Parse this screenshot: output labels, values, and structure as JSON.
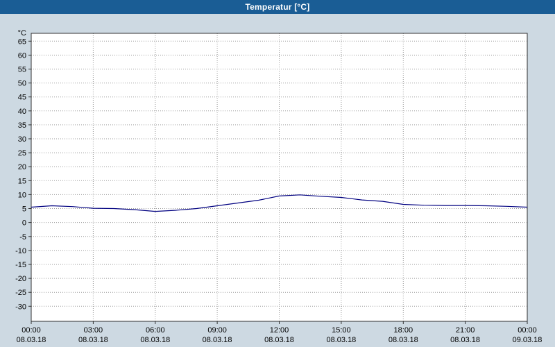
{
  "window": {
    "title": "Temperatur [°C]"
  },
  "chart_data": {
    "type": "line",
    "title": "Temperatur [°C]",
    "unit": "°C",
    "series_name": "Temperatur",
    "x_hours": [
      0,
      1,
      2,
      3,
      4,
      5,
      6,
      7,
      8,
      9,
      10,
      11,
      12,
      13,
      14,
      15,
      16,
      17,
      18,
      19,
      20,
      21,
      22,
      23,
      24
    ],
    "values": [
      5.5,
      6.0,
      5.7,
      5.1,
      5.0,
      4.6,
      4.0,
      4.4,
      5.0,
      6.0,
      7.0,
      8.0,
      9.5,
      9.9,
      9.4,
      9.0,
      8.1,
      7.6,
      6.5,
      6.2,
      6.1,
      6.1,
      6.0,
      5.8,
      5.5
    ],
    "ylim": [
      -35.4,
      67.8
    ],
    "yticks": [
      65,
      60,
      55,
      50,
      45,
      40,
      35,
      30,
      25,
      20,
      15,
      10,
      5,
      0,
      -5,
      -10,
      -15,
      -20,
      -25,
      -30
    ],
    "xticks": [
      {
        "time": "00:00",
        "date": "08.03.18"
      },
      {
        "time": "03:00",
        "date": "08.03.18"
      },
      {
        "time": "06:00",
        "date": "08.03.18"
      },
      {
        "time": "09:00",
        "date": "08.03.18"
      },
      {
        "time": "12:00",
        "date": "08.03.18"
      },
      {
        "time": "15:00",
        "date": "08.03.18"
      },
      {
        "time": "18:00",
        "date": "08.03.18"
      },
      {
        "time": "21:00",
        "date": "08.03.18"
      },
      {
        "time": "00:00",
        "date": "09.03.18"
      }
    ],
    "grid": true,
    "grid_color": "#9a9a9a",
    "axis_color": "#303030",
    "plot_background": "#ffffff",
    "outer_background": "#cdd9e2",
    "titlebar_color": "#1a5d95",
    "line_color": "#000080"
  }
}
